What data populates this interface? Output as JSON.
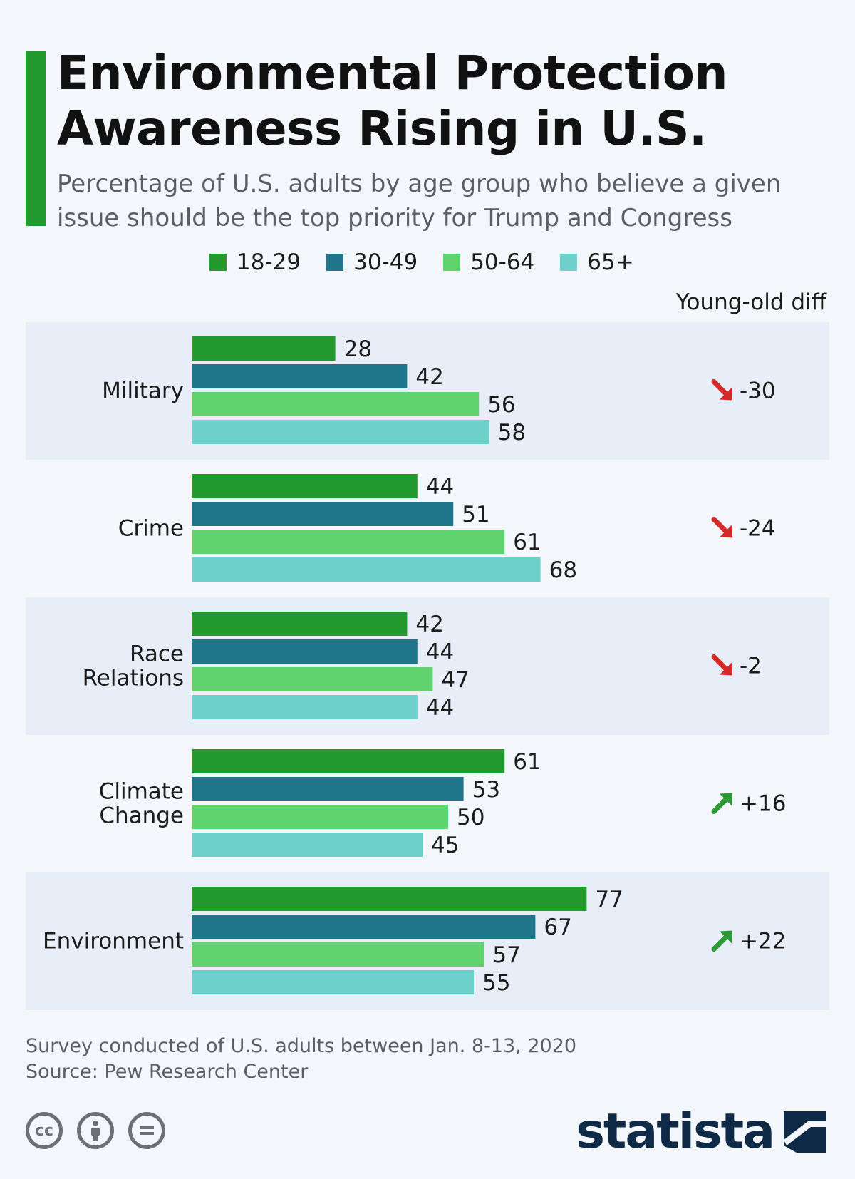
{
  "title": "Environmental Protection Awareness Rising in U.S.",
  "subtitle": "Percentage of U.S. adults by age group who believe a given issue should be the top priority for Trump and Congress",
  "diff_header": "Young-old diff",
  "footer": {
    "note": "Survey conducted of U.S. adults between Jan. 8-13, 2020",
    "source": "Source: Pew Research Center"
  },
  "brand": "statista",
  "colors": {
    "accent": "#229a2e",
    "diff_down": "#d42a2a",
    "diff_up": "#2b9a35",
    "row_shade": "#e8eef7"
  },
  "icons": [
    "cc-icon",
    "attribution-icon",
    "no-derivatives-icon",
    "statista-logo-icon",
    "arrow-down-right-icon",
    "arrow-up-right-icon"
  ],
  "chart_data": {
    "type": "bar",
    "orientation": "horizontal",
    "categories": [
      "Military",
      "Crime",
      "Race Relations",
      "Climate Change",
      "Environment"
    ],
    "category_lines": [
      [
        "Military"
      ],
      [
        "Crime"
      ],
      [
        "Race",
        "Relations"
      ],
      [
        "Climate",
        "Change"
      ],
      [
        "Environment"
      ]
    ],
    "series": [
      {
        "name": "18-29",
        "color": "#229a2e",
        "values": [
          28,
          44,
          42,
          61,
          77
        ]
      },
      {
        "name": "30-49",
        "color": "#1f758a",
        "values": [
          42,
          51,
          44,
          53,
          67
        ]
      },
      {
        "name": "50-64",
        "color": "#5fd36d",
        "values": [
          56,
          61,
          47,
          50,
          57
        ]
      },
      {
        "name": "65+",
        "color": "#6cd0cb",
        "values": [
          58,
          68,
          44,
          45,
          55
        ]
      }
    ],
    "young_old_diff": [
      "-30",
      "-24",
      "-2",
      "+16",
      "+22"
    ],
    "diff_direction": [
      "down",
      "down",
      "down",
      "up",
      "up"
    ],
    "legend_position": "top",
    "grid": false,
    "data_labels": true
  }
}
